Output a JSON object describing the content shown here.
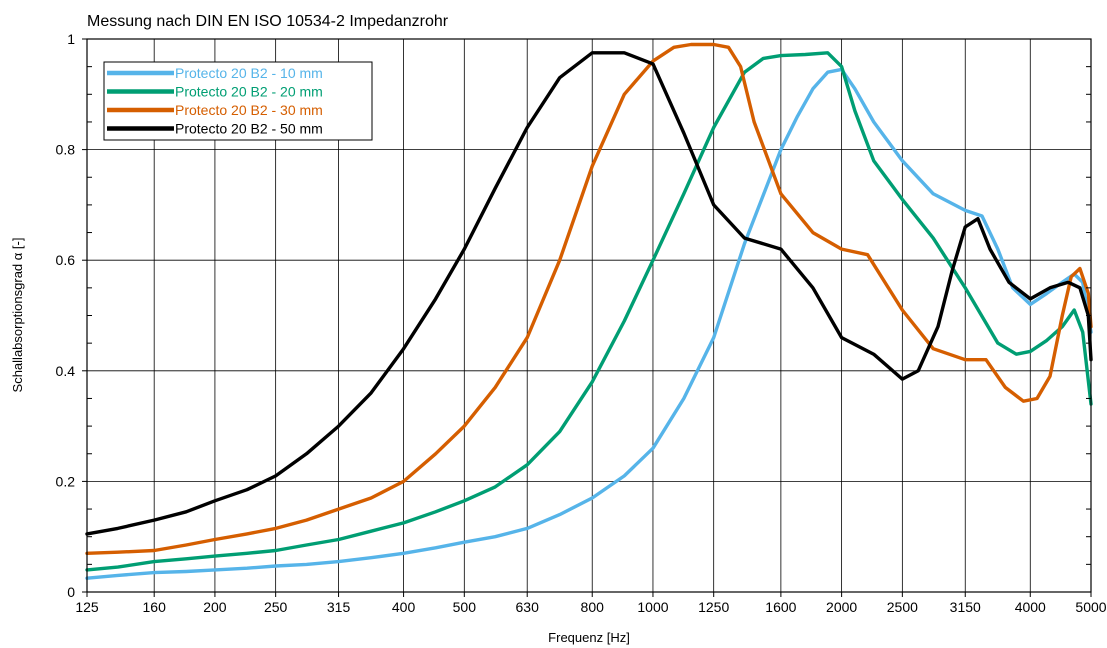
{
  "chart_data": {
    "type": "line",
    "title": "Messung nach DIN EN ISO 10534-2 Impedanzrohr",
    "xlabel": "Frequenz [Hz]",
    "ylabel": "Schallabsorptionsgrad α [-]",
    "x_scale": "log",
    "xlim": [
      125,
      5000
    ],
    "ylim": [
      0,
      1
    ],
    "x_ticks": [
      125,
      160,
      200,
      250,
      315,
      400,
      500,
      630,
      800,
      1000,
      1250,
      1600,
      2000,
      2500,
      3150,
      4000,
      5000
    ],
    "x_tick_labels": [
      "125",
      "160",
      "200",
      "250",
      "315",
      "400",
      "500",
      "630",
      "800",
      "1000",
      "1250",
      "1600",
      "2000",
      "2500",
      "3150",
      "4000",
      "5000"
    ],
    "y_ticks": [
      0,
      0.2,
      0.4,
      0.6,
      0.8,
      1
    ],
    "y_tick_labels": [
      "0",
      "0.2",
      "0.4",
      "0.6",
      "0.8",
      "1"
    ],
    "grid": true,
    "legend_position": "top-left",
    "series": [
      {
        "name": "Protecto 20 B2 - 10 mm",
        "color": "#56b4e9",
        "x": [
          125,
          140,
          160,
          180,
          200,
          225,
          250,
          280,
          315,
          355,
          400,
          450,
          500,
          560,
          630,
          710,
          800,
          900,
          1000,
          1120,
          1250,
          1400,
          1600,
          1700,
          1800,
          1900,
          2000,
          2100,
          2250,
          2500,
          2800,
          3150,
          3350,
          3550,
          3750,
          4000,
          4250,
          4500,
          4700,
          4850,
          5000
        ],
        "y": [
          0.025,
          0.03,
          0.035,
          0.037,
          0.04,
          0.043,
          0.047,
          0.05,
          0.055,
          0.062,
          0.07,
          0.08,
          0.09,
          0.1,
          0.115,
          0.14,
          0.17,
          0.21,
          0.26,
          0.35,
          0.46,
          0.63,
          0.8,
          0.86,
          0.91,
          0.94,
          0.945,
          0.91,
          0.85,
          0.78,
          0.72,
          0.69,
          0.68,
          0.62,
          0.55,
          0.52,
          0.54,
          0.56,
          0.575,
          0.56,
          0.47
        ]
      },
      {
        "name": "Protecto 20 B2 - 20 mm",
        "color": "#009e73",
        "x": [
          125,
          140,
          160,
          180,
          200,
          225,
          250,
          280,
          315,
          355,
          400,
          450,
          500,
          560,
          630,
          710,
          800,
          900,
          1000,
          1120,
          1250,
          1400,
          1500,
          1600,
          1750,
          1900,
          2000,
          2100,
          2250,
          2500,
          2800,
          3150,
          3550,
          3800,
          4000,
          4250,
          4500,
          4700,
          4850,
          5000
        ],
        "y": [
          0.04,
          0.045,
          0.055,
          0.06,
          0.065,
          0.07,
          0.075,
          0.085,
          0.095,
          0.11,
          0.125,
          0.145,
          0.165,
          0.19,
          0.23,
          0.29,
          0.38,
          0.49,
          0.6,
          0.72,
          0.84,
          0.94,
          0.965,
          0.97,
          0.972,
          0.975,
          0.95,
          0.87,
          0.78,
          0.71,
          0.64,
          0.55,
          0.45,
          0.43,
          0.435,
          0.455,
          0.48,
          0.51,
          0.47,
          0.34
        ]
      },
      {
        "name": "Protecto 20 B2 - 30 mm",
        "color": "#d55e00",
        "x": [
          125,
          140,
          160,
          180,
          200,
          225,
          250,
          280,
          315,
          355,
          400,
          450,
          500,
          560,
          630,
          710,
          800,
          900,
          1000,
          1080,
          1150,
          1250,
          1320,
          1380,
          1450,
          1600,
          1800,
          2000,
          2200,
          2500,
          2800,
          3150,
          3400,
          3650,
          3900,
          4100,
          4300,
          4500,
          4650,
          4800,
          4950,
          5000
        ],
        "y": [
          0.07,
          0.072,
          0.075,
          0.085,
          0.095,
          0.105,
          0.115,
          0.13,
          0.15,
          0.17,
          0.2,
          0.25,
          0.3,
          0.37,
          0.46,
          0.6,
          0.77,
          0.9,
          0.96,
          0.985,
          0.99,
          0.99,
          0.985,
          0.95,
          0.85,
          0.72,
          0.65,
          0.62,
          0.61,
          0.51,
          0.44,
          0.42,
          0.42,
          0.37,
          0.345,
          0.35,
          0.39,
          0.5,
          0.57,
          0.585,
          0.54,
          0.48
        ]
      },
      {
        "name": "Protecto 20 B2 - 50 mm",
        "color": "#000000",
        "x": [
          125,
          140,
          160,
          180,
          200,
          225,
          250,
          280,
          315,
          355,
          400,
          450,
          500,
          560,
          630,
          710,
          800,
          900,
          1000,
          1120,
          1250,
          1400,
          1600,
          1800,
          2000,
          2250,
          2500,
          2650,
          2850,
          3000,
          3150,
          3300,
          3450,
          3700,
          4000,
          4300,
          4600,
          4800,
          4950,
          5000
        ],
        "y": [
          0.105,
          0.115,
          0.13,
          0.145,
          0.165,
          0.185,
          0.21,
          0.25,
          0.3,
          0.36,
          0.44,
          0.53,
          0.62,
          0.73,
          0.84,
          0.93,
          0.975,
          0.975,
          0.955,
          0.83,
          0.7,
          0.64,
          0.62,
          0.55,
          0.46,
          0.43,
          0.385,
          0.4,
          0.48,
          0.58,
          0.66,
          0.675,
          0.62,
          0.56,
          0.53,
          0.55,
          0.56,
          0.55,
          0.5,
          0.42
        ]
      }
    ]
  }
}
